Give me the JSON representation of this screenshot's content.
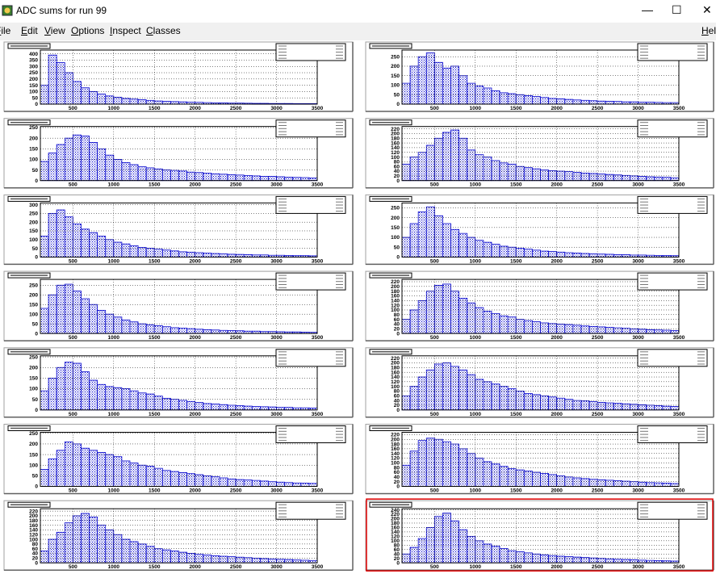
{
  "window": {
    "title": "ADC sums for run 99"
  },
  "menu": [
    "File",
    "Edit",
    "View",
    "Options",
    "Inspect",
    "Classes",
    "Help"
  ],
  "chart_data": [
    {
      "type": "histogram",
      "color": "#0000cc",
      "grid": true,
      "xlim": [
        100,
        3500
      ],
      "ylim": [
        0,
        430
      ],
      "bins": [
        100,
        200,
        300,
        400,
        500,
        600,
        700,
        800,
        900,
        1000,
        1100,
        1200,
        1300,
        1400,
        1500,
        1600,
        1700,
        1800,
        1900,
        2000,
        2100,
        2200,
        2300,
        2400,
        2500,
        2600,
        2700,
        2800,
        2900,
        3000,
        3100,
        3200,
        3300,
        3400,
        3500
      ],
      "values": [
        150,
        390,
        330,
        250,
        180,
        130,
        100,
        80,
        65,
        55,
        45,
        40,
        35,
        30,
        25,
        22,
        20,
        18,
        15,
        14,
        12,
        10,
        10,
        8,
        8,
        7,
        6,
        6,
        5,
        5,
        5,
        4,
        4,
        4
      ],
      "xticks": [
        500,
        1000,
        1500,
        2000,
        2500,
        3000,
        3500
      ],
      "yticks": [
        0,
        50,
        100,
        150,
        200,
        250,
        300,
        350,
        400
      ]
    },
    {
      "type": "histogram",
      "color": "#0000cc",
      "grid": true,
      "xlim": [
        100,
        3500
      ],
      "ylim": [
        0,
        285
      ],
      "bins": [
        100,
        200,
        300,
        400,
        500,
        600,
        700,
        800,
        900,
        1000,
        1100,
        1200,
        1300,
        1400,
        1500,
        1600,
        1700,
        1800,
        1900,
        2000,
        2100,
        2200,
        2300,
        2400,
        2500,
        2600,
        2700,
        2800,
        2900,
        3000,
        3100,
        3200,
        3300,
        3400,
        3500
      ],
      "values": [
        110,
        200,
        250,
        270,
        220,
        190,
        200,
        150,
        110,
        95,
        85,
        70,
        60,
        55,
        50,
        45,
        40,
        35,
        30,
        28,
        25,
        22,
        20,
        18,
        16,
        15,
        14,
        12,
        12,
        10,
        10,
        9,
        8,
        8
      ],
      "xticks": [
        500,
        1000,
        1500,
        2000,
        2500,
        3000,
        3500
      ],
      "yticks": [
        0,
        50,
        100,
        150,
        200,
        250
      ]
    },
    {
      "type": "histogram",
      "color": "#0000cc",
      "grid": true,
      "xlim": [
        100,
        3500
      ],
      "ylim": [
        0,
        255
      ],
      "bins": [
        100,
        200,
        300,
        400,
        500,
        600,
        700,
        800,
        900,
        1000,
        1100,
        1200,
        1300,
        1400,
        1500,
        1600,
        1700,
        1800,
        1900,
        2000,
        2100,
        2200,
        2300,
        2400,
        2500,
        2600,
        2700,
        2800,
        2900,
        3000,
        3100,
        3200,
        3300,
        3400,
        3500
      ],
      "values": [
        90,
        130,
        170,
        200,
        215,
        210,
        180,
        150,
        120,
        100,
        85,
        75,
        65,
        60,
        55,
        50,
        48,
        45,
        40,
        38,
        35,
        32,
        30,
        28,
        26,
        24,
        22,
        20,
        20,
        18,
        16,
        15,
        14,
        12
      ],
      "xticks": [
        500,
        1000,
        1500,
        2000,
        2500,
        3000,
        3500
      ],
      "yticks": [
        0,
        50,
        100,
        150,
        200,
        250
      ]
    },
    {
      "type": "histogram",
      "color": "#0000cc",
      "grid": true,
      "xlim": [
        100,
        3500
      ],
      "ylim": [
        0,
        230
      ],
      "bins": [
        100,
        200,
        300,
        400,
        500,
        600,
        700,
        800,
        900,
        1000,
        1100,
        1200,
        1300,
        1400,
        1500,
        1600,
        1700,
        1800,
        1900,
        2000,
        2100,
        2200,
        2300,
        2400,
        2500,
        2600,
        2700,
        2800,
        2900,
        3000,
        3100,
        3200,
        3300,
        3400,
        3500
      ],
      "values": [
        70,
        100,
        120,
        150,
        180,
        205,
        215,
        180,
        130,
        110,
        100,
        85,
        75,
        70,
        60,
        55,
        50,
        45,
        42,
        40,
        38,
        35,
        32,
        30,
        28,
        26,
        24,
        22,
        20,
        18,
        16,
        15,
        14,
        12
      ],
      "xticks": [
        500,
        1000,
        1500,
        2000,
        2500,
        3000,
        3500
      ],
      "yticks": [
        0,
        20,
        40,
        60,
        80,
        100,
        120,
        140,
        160,
        180,
        200,
        220
      ]
    },
    {
      "type": "histogram",
      "color": "#0000cc",
      "grid": true,
      "xlim": [
        100,
        3500
      ],
      "ylim": [
        0,
        310
      ],
      "bins": [
        100,
        200,
        300,
        400,
        500,
        600,
        700,
        800,
        900,
        1000,
        1100,
        1200,
        1300,
        1400,
        1500,
        1600,
        1700,
        1800,
        1900,
        2000,
        2100,
        2200,
        2300,
        2400,
        2500,
        2600,
        2700,
        2800,
        2900,
        3000,
        3100,
        3200,
        3300,
        3400,
        3500
      ],
      "values": [
        120,
        250,
        270,
        230,
        190,
        160,
        140,
        120,
        100,
        85,
        75,
        65,
        55,
        50,
        45,
        40,
        35,
        30,
        28,
        25,
        22,
        20,
        18,
        16,
        15,
        14,
        12,
        12,
        10,
        10,
        9,
        8,
        8,
        7
      ],
      "xticks": [
        500,
        1000,
        1500,
        2000,
        2500,
        3000,
        3500
      ],
      "yticks": [
        0,
        50,
        100,
        150,
        200,
        250,
        300
      ]
    },
    {
      "type": "histogram",
      "color": "#0000cc",
      "grid": true,
      "xlim": [
        100,
        3500
      ],
      "ylim": [
        0,
        275
      ],
      "bins": [
        100,
        200,
        300,
        400,
        500,
        600,
        700,
        800,
        900,
        1000,
        1100,
        1200,
        1300,
        1400,
        1500,
        1600,
        1700,
        1800,
        1900,
        2000,
        2100,
        2200,
        2300,
        2400,
        2500,
        2600,
        2700,
        2800,
        2900,
        3000,
        3100,
        3200,
        3300,
        3400,
        3500
      ],
      "values": [
        100,
        170,
        230,
        255,
        210,
        170,
        140,
        120,
        100,
        85,
        75,
        65,
        55,
        50,
        45,
        40,
        35,
        30,
        28,
        25,
        22,
        20,
        18,
        16,
        15,
        14,
        12,
        12,
        10,
        10,
        9,
        8,
        8,
        7
      ],
      "xticks": [
        500,
        1000,
        1500,
        2000,
        2500,
        3000,
        3500
      ],
      "yticks": [
        0,
        50,
        100,
        150,
        200,
        250
      ]
    },
    {
      "type": "histogram",
      "color": "#0000cc",
      "grid": true,
      "xlim": [
        100,
        3500
      ],
      "ylim": [
        0,
        280
      ],
      "bins": [
        100,
        200,
        300,
        400,
        500,
        600,
        700,
        800,
        900,
        1000,
        1100,
        1200,
        1300,
        1400,
        1500,
        1600,
        1700,
        1800,
        1900,
        2000,
        2100,
        2200,
        2300,
        2400,
        2500,
        2600,
        2700,
        2800,
        2900,
        3000,
        3100,
        3200,
        3300,
        3400,
        3500
      ],
      "values": [
        130,
        200,
        250,
        255,
        220,
        180,
        150,
        120,
        100,
        85,
        70,
        60,
        50,
        45,
        40,
        35,
        30,
        28,
        25,
        22,
        20,
        18,
        16,
        15,
        14,
        12,
        12,
        10,
        10,
        9,
        8,
        8,
        7,
        6
      ],
      "xticks": [
        500,
        1000,
        1500,
        2000,
        2500,
        3000,
        3500
      ],
      "yticks": [
        0,
        50,
        100,
        150,
        200,
        250
      ]
    },
    {
      "type": "histogram",
      "color": "#0000cc",
      "grid": true,
      "xlim": [
        100,
        3500
      ],
      "ylim": [
        0,
        230
      ],
      "bins": [
        100,
        200,
        300,
        400,
        500,
        600,
        700,
        800,
        900,
        1000,
        1100,
        1200,
        1300,
        1400,
        1500,
        1600,
        1700,
        1800,
        1900,
        2000,
        2100,
        2200,
        2300,
        2400,
        2500,
        2600,
        2700,
        2800,
        2900,
        3000,
        3100,
        3200,
        3300,
        3400,
        3500
      ],
      "values": [
        60,
        100,
        140,
        180,
        205,
        210,
        180,
        150,
        130,
        110,
        95,
        85,
        75,
        70,
        60,
        55,
        50,
        45,
        42,
        40,
        38,
        35,
        32,
        30,
        28,
        26,
        24,
        22,
        20,
        18,
        16,
        15,
        14,
        12
      ],
      "xticks": [
        500,
        1000,
        1500,
        2000,
        2500,
        3000,
        3500
      ],
      "yticks": [
        0,
        20,
        40,
        60,
        80,
        100,
        120,
        140,
        160,
        180,
        200,
        220
      ]
    },
    {
      "type": "histogram",
      "color": "#0000cc",
      "grid": true,
      "xlim": [
        100,
        3500
      ],
      "ylim": [
        0,
        255
      ],
      "bins": [
        100,
        200,
        300,
        400,
        500,
        600,
        700,
        800,
        900,
        1000,
        1100,
        1200,
        1300,
        1400,
        1500,
        1600,
        1700,
        1800,
        1900,
        2000,
        2100,
        2200,
        2300,
        2400,
        2500,
        2600,
        2700,
        2800,
        2900,
        3000,
        3100,
        3200,
        3300,
        3400,
        3500
      ],
      "values": [
        90,
        150,
        200,
        225,
        220,
        180,
        140,
        120,
        110,
        105,
        100,
        90,
        80,
        75,
        65,
        55,
        50,
        45,
        40,
        35,
        30,
        28,
        25,
        22,
        20,
        18,
        16,
        15,
        14,
        12,
        12,
        10,
        10,
        9
      ],
      "xticks": [
        500,
        1000,
        1500,
        2000,
        2500,
        3000,
        3500
      ],
      "yticks": [
        0,
        50,
        100,
        150,
        200,
        250
      ]
    },
    {
      "type": "histogram",
      "color": "#0000cc",
      "grid": true,
      "xlim": [
        100,
        3500
      ],
      "ylim": [
        0,
        230
      ],
      "bins": [
        100,
        200,
        300,
        400,
        500,
        600,
        700,
        800,
        900,
        1000,
        1100,
        1200,
        1300,
        1400,
        1500,
        1600,
        1700,
        1800,
        1900,
        2000,
        2100,
        2200,
        2300,
        2400,
        2500,
        2600,
        2700,
        2800,
        2900,
        3000,
        3100,
        3200,
        3300,
        3400,
        3500
      ],
      "values": [
        60,
        100,
        140,
        170,
        195,
        200,
        185,
        170,
        150,
        130,
        120,
        110,
        100,
        90,
        80,
        70,
        65,
        60,
        55,
        50,
        45,
        40,
        38,
        35,
        32,
        30,
        28,
        26,
        24,
        22,
        20,
        18,
        16,
        15
      ],
      "xticks": [
        500,
        1000,
        1500,
        2000,
        2500,
        3000,
        3500
      ],
      "yticks": [
        0,
        20,
        40,
        60,
        80,
        100,
        120,
        140,
        160,
        180,
        200,
        220
      ]
    },
    {
      "type": "histogram",
      "color": "#0000cc",
      "grid": true,
      "xlim": [
        100,
        3500
      ],
      "ylim": [
        0,
        255
      ],
      "bins": [
        100,
        200,
        300,
        400,
        500,
        600,
        700,
        800,
        900,
        1000,
        1100,
        1200,
        1300,
        1400,
        1500,
        1600,
        1700,
        1800,
        1900,
        2000,
        2100,
        2200,
        2300,
        2400,
        2500,
        2600,
        2700,
        2800,
        2900,
        3000,
        3100,
        3200,
        3300,
        3400,
        3500
      ],
      "values": [
        80,
        130,
        170,
        210,
        200,
        180,
        170,
        160,
        150,
        140,
        120,
        110,
        100,
        95,
        85,
        75,
        70,
        65,
        60,
        55,
        50,
        45,
        40,
        35,
        32,
        30,
        28,
        25,
        22,
        20,
        18,
        16,
        15,
        14
      ],
      "xticks": [
        500,
        1000,
        1500,
        2000,
        2500,
        3000,
        3500
      ],
      "yticks": [
        0,
        50,
        100,
        150,
        200,
        250
      ]
    },
    {
      "type": "histogram",
      "color": "#0000cc",
      "grid": true,
      "xlim": [
        100,
        3500
      ],
      "ylim": [
        0,
        230
      ],
      "bins": [
        100,
        200,
        300,
        400,
        500,
        600,
        700,
        800,
        900,
        1000,
        1100,
        1200,
        1300,
        1400,
        1500,
        1600,
        1700,
        1800,
        1900,
        2000,
        2100,
        2200,
        2300,
        2400,
        2500,
        2600,
        2700,
        2800,
        2900,
        3000,
        3100,
        3200,
        3300,
        3400,
        3500
      ],
      "values": [
        90,
        150,
        195,
        205,
        200,
        190,
        180,
        160,
        140,
        120,
        105,
        95,
        85,
        75,
        70,
        65,
        60,
        55,
        50,
        45,
        40,
        36,
        33,
        30,
        28,
        26,
        24,
        22,
        20,
        18,
        16,
        15,
        14,
        12
      ],
      "xticks": [
        500,
        1000,
        1500,
        2000,
        2500,
        3000,
        3500
      ],
      "yticks": [
        0,
        20,
        40,
        60,
        80,
        100,
        120,
        140,
        160,
        180,
        200,
        220
      ]
    },
    {
      "type": "histogram",
      "color": "#0000cc",
      "grid": true,
      "xlim": [
        100,
        3500
      ],
      "ylim": [
        0,
        230
      ],
      "bins": [
        100,
        200,
        300,
        400,
        500,
        600,
        700,
        800,
        900,
        1000,
        1100,
        1200,
        1300,
        1400,
        1500,
        1600,
        1700,
        1800,
        1900,
        2000,
        2100,
        2200,
        2300,
        2400,
        2500,
        2600,
        2700,
        2800,
        2900,
        3000,
        3100,
        3200,
        3300,
        3400,
        3500
      ],
      "values": [
        50,
        100,
        130,
        170,
        200,
        210,
        195,
        160,
        140,
        120,
        100,
        90,
        80,
        70,
        60,
        55,
        50,
        45,
        40,
        36,
        33,
        30,
        28,
        26,
        24,
        22,
        20,
        18,
        16,
        15,
        14,
        12,
        11,
        10
      ],
      "xticks": [
        500,
        1000,
        1500,
        2000,
        2500,
        3000,
        3500
      ],
      "yticks": [
        0,
        20,
        40,
        60,
        80,
        100,
        120,
        140,
        160,
        180,
        200,
        220
      ]
    },
    {
      "type": "histogram",
      "color": "#0000cc",
      "grid": true,
      "xlim": [
        100,
        3500
      ],
      "ylim": [
        0,
        245
      ],
      "bins": [
        100,
        200,
        300,
        400,
        500,
        600,
        700,
        800,
        900,
        1000,
        1100,
        1200,
        1300,
        1400,
        1500,
        1600,
        1700,
        1800,
        1900,
        2000,
        2100,
        2200,
        2300,
        2400,
        2500,
        2600,
        2700,
        2800,
        2900,
        3000,
        3100,
        3200,
        3300,
        3400,
        3500
      ],
      "values": [
        40,
        70,
        110,
        160,
        210,
        225,
        190,
        150,
        120,
        100,
        85,
        75,
        65,
        55,
        50,
        45,
        40,
        36,
        33,
        30,
        28,
        26,
        24,
        22,
        20,
        18,
        16,
        15,
        14,
        12,
        11,
        10,
        9,
        8
      ],
      "xticks": [
        500,
        1000,
        1500,
        2000,
        2500,
        3000,
        3500
      ],
      "yticks": [
        0,
        20,
        40,
        60,
        80,
        100,
        120,
        140,
        160,
        180,
        200,
        220,
        240
      ]
    }
  ]
}
